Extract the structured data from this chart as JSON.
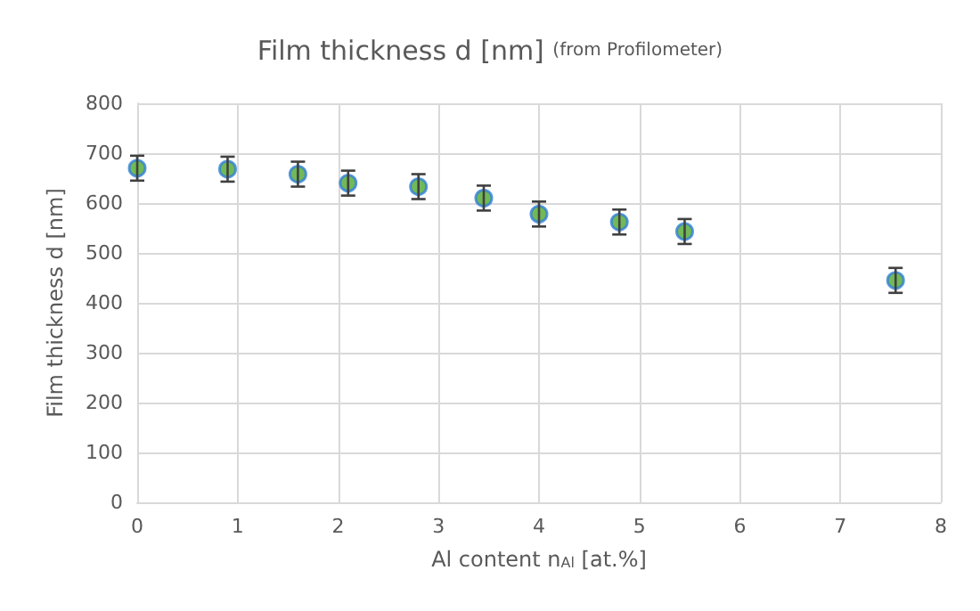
{
  "chart_data": {
    "type": "scatter",
    "title": "Film thickness d [nm]",
    "subtitle": "(from Profilometer)",
    "xlabel": "Al content n$_{Al}$ [at.%]",
    "ylabel": "Film thickness d [nm]",
    "x": [
      0,
      0.9,
      1.6,
      2.1,
      2.8,
      3.45,
      4.0,
      4.8,
      5.45,
      7.55
    ],
    "series": [
      {
        "color": "#4ea72e",
        "values": [
          670,
          668,
          658,
          640,
          633,
          610,
          578,
          562,
          543,
          445
        ],
        "errors": [
          25,
          25,
          25,
          25,
          25,
          25,
          25,
          25,
          25,
          25
        ]
      }
    ],
    "xlim": [
      0,
      8
    ],
    "xticks": [
      0,
      1,
      2,
      3,
      4,
      5,
      6,
      7,
      8
    ],
    "ylim": [
      0,
      800
    ],
    "yticks": [
      0,
      100,
      200,
      300,
      400,
      500,
      600,
      700,
      800
    ],
    "grid": true,
    "marker": "circle"
  }
}
